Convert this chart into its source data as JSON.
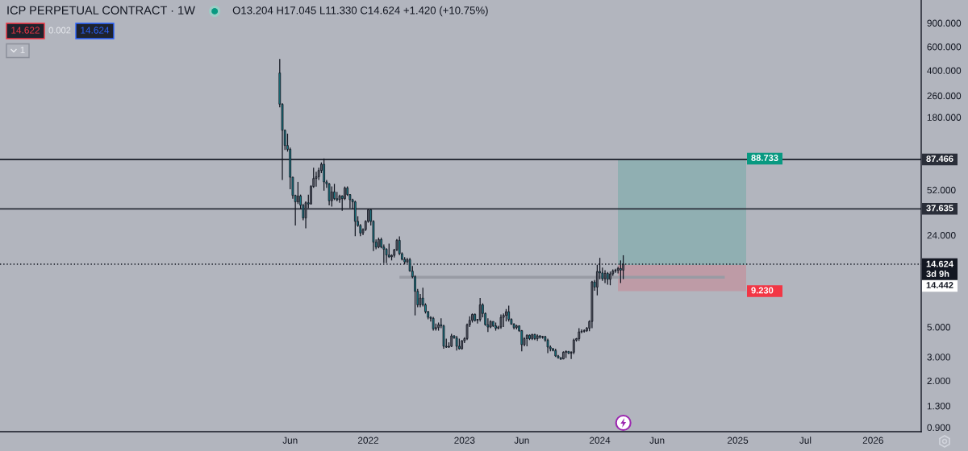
{
  "chart_data": {
    "type": "candlestick",
    "title": "ICP PERPETUAL CONTRACT · 1W",
    "annotations": [
      "O13.204 H17.045 L11.330 C14.624 +1.420 (+10.75%)",
      "14.622",
      "0.002",
      "14.624",
      "1",
      "14.442"
    ],
    "categories": [
      null,
      null,
      null,
      null,
      null,
      null,
      null,
      null,
      null,
      null,
      null,
      null,
      null,
      null,
      null,
      null,
      null,
      null,
      null,
      null,
      null,
      null,
      null,
      null,
      null,
      null,
      null,
      null,
      null,
      null,
      null,
      null,
      null,
      null,
      null,
      null,
      null,
      null,
      null,
      null,
      null,
      null,
      null,
      null,
      null,
      null,
      null,
      null,
      null,
      null,
      null,
      null,
      null,
      null,
      null,
      null,
      null,
      null,
      null,
      null,
      null,
      null,
      null,
      null,
      null,
      null,
      null,
      null,
      null,
      null,
      null,
      null,
      null,
      null,
      null,
      null,
      null,
      null,
      null,
      null,
      null,
      null,
      null,
      null,
      null,
      null,
      null,
      null,
      null,
      null,
      null,
      null,
      null,
      null,
      null,
      null,
      null,
      null,
      null,
      null,
      null,
      null,
      null,
      null,
      null,
      null,
      null,
      null,
      null,
      null,
      null,
      "Jun",
      null,
      null,
      null,
      null,
      null,
      null,
      null,
      null,
      null,
      null,
      null,
      null,
      null,
      null,
      null,
      null,
      null,
      null,
      null,
      null,
      null,
      null,
      null,
      null,
      null,
      null,
      null,
      null,
      null,
      "2022",
      null,
      null,
      null,
      null,
      null,
      null,
      null,
      null,
      null,
      null,
      null,
      null,
      null,
      null,
      null,
      null,
      null,
      null,
      null,
      null,
      null,
      null,
      null,
      null,
      null,
      null,
      null,
      null,
      null,
      null,
      null,
      null,
      null,
      null,
      null,
      null,
      "2023",
      null,
      null,
      null,
      null,
      null,
      null,
      null,
      null,
      null,
      null,
      null,
      null,
      null,
      null,
      null,
      null,
      null,
      null,
      null,
      null,
      null,
      "Jun",
      null,
      null,
      null,
      null,
      null,
      null,
      null,
      null,
      null,
      null,
      null,
      null,
      null,
      null,
      null,
      null,
      null,
      null,
      null,
      null,
      null,
      null,
      null,
      null,
      null,
      null,
      null,
      null,
      null,
      "2024",
      null,
      null,
      null,
      null,
      null,
      null,
      null,
      null,
      null,
      null,
      null,
      null,
      null,
      null,
      null,
      null,
      null,
      null,
      null,
      null,
      null,
      "Jun",
      null,
      null,
      null,
      null,
      null,
      null,
      null,
      null,
      null,
      null,
      null,
      null,
      null,
      null,
      null,
      null,
      null,
      null,
      null,
      null,
      null,
      null,
      null,
      null,
      null,
      null,
      null,
      null,
      null,
      null,
      "2025",
      null,
      null,
      null,
      null,
      null,
      null,
      null,
      null,
      null,
      null,
      null,
      null,
      null,
      null,
      null,
      null,
      null,
      null,
      null,
      null,
      null,
      null,
      null,
      null,
      null,
      "Jul",
      null,
      null,
      null,
      null,
      null,
      null,
      null,
      null,
      null,
      null,
      null,
      null,
      null,
      null,
      null,
      null,
      null,
      null,
      null,
      null,
      null,
      null,
      null,
      null,
      null,
      "2026",
      null,
      null,
      null,
      null,
      null,
      null,
      null,
      null,
      null,
      null,
      null,
      null,
      null,
      null,
      null,
      null,
      null,
      null
    ],
    "ohlc": [
      null,
      null,
      null,
      null,
      null,
      null,
      null,
      null,
      null,
      null,
      null,
      null,
      null,
      null,
      null,
      null,
      null,
      null,
      null,
      null,
      null,
      null,
      null,
      null,
      null,
      null,
      null,
      null,
      null,
      null,
      null,
      null,
      null,
      null,
      null,
      null,
      null,
      null,
      null,
      null,
      null,
      null,
      null,
      null,
      null,
      null,
      null,
      null,
      null,
      null,
      null,
      null,
      null,
      null,
      null,
      null,
      null,
      null,
      null,
      null,
      null,
      null,
      null,
      null,
      null,
      null,
      null,
      null,
      null,
      null,
      null,
      null,
      null,
      null,
      null,
      null,
      null,
      null,
      null,
      null,
      null,
      null,
      null,
      null,
      null,
      null,
      null,
      null,
      null,
      null,
      null,
      null,
      null,
      null,
      null,
      null,
      null,
      null,
      null,
      null,
      null,
      null,
      null,
      null,
      null,
      null,
      null,
      [
        383,
        486,
        213,
        225
      ],
      [
        225,
        228,
        61.7,
        144
      ],
      [
        144,
        146,
        103,
        111
      ],
      [
        111,
        136,
        100,
        104
      ],
      [
        104,
        107,
        52.6,
        64.6
      ],
      [
        64.6,
        65.2,
        44.8,
        47.3
      ],
      [
        47.3,
        48,
        28.3,
        42.4
      ],
      [
        42.4,
        59.6,
        40.9,
        46.9
      ],
      [
        46.9,
        48,
        37.6,
        40
      ],
      [
        40,
        40.9,
        31,
        32.2
      ],
      [
        32.2,
        42.8,
        27,
        41.8
      ],
      [
        41.8,
        48,
        38.1,
        40.9
      ],
      [
        40.9,
        56.4,
        40.5,
        55.1
      ],
      [
        55.1,
        75.9,
        53.8,
        63.2
      ],
      [
        63.2,
        70.9,
        55,
        65.2
      ],
      [
        65.2,
        75.9,
        61.7,
        72.5
      ],
      [
        72.5,
        83.2,
        69.3,
        80.6
      ],
      [
        80.6,
        89.1,
        51.4,
        59.6
      ],
      [
        59.6,
        61.7,
        53.8,
        57.7
      ],
      [
        57.7,
        58.5,
        40,
        43.2
      ],
      [
        43.2,
        55.1,
        39.1,
        50.3
      ],
      [
        50.3,
        57.7,
        43.7,
        44.8
      ],
      [
        44.8,
        50.3,
        42.8,
        44
      ],
      [
        44,
        48,
        41.8,
        46.9
      ],
      [
        46.9,
        47.5,
        36.4,
        44.8
      ],
      [
        44.8,
        55.1,
        43.7,
        53.8
      ],
      [
        53.8,
        55.1,
        46.9,
        48
      ],
      [
        48,
        48.5,
        38.1,
        44
      ],
      [
        44,
        44.8,
        37.6,
        42.4
      ],
      [
        42.4,
        43.2,
        23.6,
        30.4
      ],
      [
        30.4,
        33.2,
        27.7,
        28.3
      ],
      [
        28.3,
        29,
        23.6,
        24.9
      ],
      [
        24.9,
        27,
        24,
        26.4
      ],
      [
        26.4,
        31,
        25.8,
        30.4
      ],
      [
        30.4,
        37.6,
        29.7,
        37
      ],
      [
        37,
        37.6,
        28.3,
        30.4
      ],
      [
        30.4,
        31,
        18.3,
        21.3
      ],
      [
        21.3,
        22.3,
        18.9,
        19.6
      ],
      [
        19.6,
        23,
        19.2,
        22.3
      ],
      [
        22.3,
        23,
        19.2,
        19.6
      ],
      [
        19.6,
        20.5,
        14.9,
        18.9
      ],
      [
        18.9,
        19.2,
        14.9,
        17.1
      ],
      [
        17.1,
        20.8,
        16.3,
        16.6
      ],
      [
        16.6,
        17.3,
        15.6,
        17
      ],
      [
        17,
        19,
        16.4,
        18.7
      ],
      [
        18.7,
        22.5,
        18.3,
        22
      ],
      [
        22,
        23.5,
        17.1,
        17.5
      ],
      [
        17.5,
        17.9,
        15.6,
        15.9
      ],
      [
        15.9,
        16.5,
        14.6,
        15.2
      ],
      [
        15.2,
        16.3,
        14.9,
        15.8
      ],
      [
        15.8,
        16.3,
        12.9,
        13
      ],
      [
        13,
        14.2,
        11.5,
        11.8
      ],
      [
        11.8,
        12.1,
        6.1,
        9.2
      ],
      [
        9.2,
        9.6,
        7,
        7.3
      ],
      [
        7.3,
        8.8,
        7,
        8.2
      ],
      [
        8.2,
        9.8,
        7.1,
        7.3
      ],
      [
        7.3,
        7.5,
        6.3,
        6.5
      ],
      [
        6.5,
        6.6,
        5.7,
        5.9
      ],
      [
        5.9,
        6,
        5.5,
        5.8
      ],
      [
        5.8,
        5.95,
        4.7,
        4.85
      ],
      [
        4.85,
        5.3,
        4.7,
        4.95
      ],
      [
        4.95,
        5.4,
        4.7,
        5.2
      ],
      [
        5.2,
        5.8,
        4.9,
        5.1
      ],
      [
        5.1,
        5.2,
        3.45,
        3.6
      ],
      [
        3.6,
        4.1,
        3.5,
        3.55
      ],
      [
        3.55,
        3.85,
        3.5,
        3.6
      ],
      [
        3.6,
        4.45,
        3.55,
        4.3
      ],
      [
        4.3,
        4.35,
        4.1,
        4.15
      ],
      [
        4.15,
        4.3,
        3.35,
        3.6
      ],
      [
        3.6,
        4.1,
        3.4,
        3.45
      ],
      [
        3.45,
        4,
        3.4,
        3.95
      ],
      [
        3.95,
        4.2,
        3.8,
        4.1
      ],
      [
        4.1,
        5.3,
        4,
        5.2
      ],
      [
        5.2,
        6,
        5,
        5.6
      ],
      [
        5.6,
        6.3,
        5.4,
        6.2
      ],
      [
        6.2,
        6.3,
        5.5,
        5.6
      ],
      [
        5.6,
        5.75,
        5.3,
        5.7
      ],
      [
        5.7,
        8.2,
        5.5,
        7.3
      ],
      [
        7.3,
        7.5,
        5.9,
        6.3
      ],
      [
        6.3,
        6.4,
        5.1,
        5.2
      ],
      [
        5.2,
        5.8,
        4.6,
        5
      ],
      [
        5,
        5.6,
        4.9,
        5.5
      ],
      [
        5.5,
        5.5,
        5,
        5.1
      ],
      [
        5.1,
        5.4,
        4.7,
        4.9
      ],
      [
        4.9,
        5.1,
        4.8,
        5
      ],
      [
        5,
        6.2,
        4.85,
        5.9
      ],
      [
        5.9,
        6.3,
        5,
        6.1
      ],
      [
        6.1,
        6.8,
        5.5,
        6.5
      ],
      [
        6.5,
        7.2,
        5.5,
        5.7
      ],
      [
        5.7,
        5.8,
        5.2,
        5.25
      ],
      [
        5.25,
        5.35,
        4.8,
        4.95
      ],
      [
        4.95,
        5.2,
        4.8,
        5.1
      ],
      [
        5.1,
        5.15,
        4.6,
        4.7
      ],
      [
        4.7,
        4.75,
        3.3,
        3.7
      ],
      [
        3.7,
        4.2,
        3.6,
        4.1
      ],
      [
        4.1,
        4.4,
        3.6,
        4.35
      ],
      [
        4.35,
        4.4,
        4,
        4.1
      ],
      [
        4.1,
        4.45,
        4,
        4.4
      ],
      [
        4.4,
        4.45,
        4,
        4.1
      ],
      [
        4.1,
        4.4,
        3.95,
        4.3
      ],
      [
        4.3,
        4.35,
        4.1,
        4.2
      ],
      [
        4.2,
        4.3,
        4.1,
        4.25
      ],
      [
        4.25,
        4.3,
        3.9,
        4
      ],
      [
        4,
        4.1,
        3.2,
        3.55
      ],
      [
        3.55,
        3.65,
        3.3,
        3.45
      ],
      [
        3.45,
        3.5,
        3.3,
        3.35
      ],
      [
        3.35,
        3.45,
        3,
        3.05
      ],
      [
        3.05,
        3.1,
        2.92,
        2.95
      ],
      [
        2.95,
        3,
        2.85,
        2.9
      ],
      [
        2.9,
        3.3,
        2.88,
        3.25
      ],
      [
        3.25,
        3.35,
        2.95,
        3.3
      ],
      [
        3.3,
        3.3,
        3.15,
        3.2
      ],
      [
        3.2,
        3.3,
        2.9,
        3.25
      ],
      [
        3.25,
        4.1,
        3.15,
        4
      ],
      [
        4,
        4.15,
        3.9,
        4.1
      ],
      [
        4.1,
        4.9,
        3.95,
        4.6
      ],
      [
        4.6,
        4.8,
        4.5,
        4.65
      ],
      [
        4.65,
        4.8,
        4.55,
        4.7
      ],
      [
        4.7,
        5,
        4.6,
        4.9
      ],
      [
        4.9,
        5.6,
        4.65,
        5.5
      ],
      [
        5.5,
        11,
        4.9,
        10.8
      ],
      [
        10.8,
        11.2,
        9.3,
        9.9
      ],
      [
        9.9,
        14.5,
        8.6,
        12.9
      ],
      [
        12.9,
        16.3,
        11.3,
        12.6
      ],
      [
        12.6,
        13.8,
        11,
        11.4
      ],
      [
        11.4,
        13.2,
        10.6,
        12.5
      ],
      [
        12.5,
        12.8,
        10.3,
        11.3
      ],
      [
        11.3,
        12.9,
        10.2,
        12.4
      ],
      [
        12.4,
        13.4,
        12,
        13
      ],
      [
        13,
        13.5,
        12.6,
        13.2
      ],
      [
        13.2,
        14,
        12.5,
        13.6
      ],
      [
        13.6,
        15.6,
        10.6,
        13.204
      ],
      [
        13.204,
        17.045,
        11.33,
        14.624
      ],
      null,
      null,
      null,
      null,
      null,
      null,
      null,
      null,
      null,
      null,
      null,
      null,
      null,
      null,
      null,
      null,
      null,
      null,
      null,
      null,
      null,
      null,
      null,
      null,
      null,
      null,
      null,
      null,
      null,
      null,
      null,
      null,
      null,
      null,
      null,
      null,
      null,
      null,
      null,
      null,
      null,
      null,
      null,
      null,
      null,
      null,
      null,
      null,
      null,
      null,
      null,
      null,
      null,
      null,
      null,
      null,
      null,
      null,
      null,
      null,
      null,
      null,
      null,
      null,
      null,
      null,
      null,
      null,
      null,
      null,
      null,
      null,
      null,
      null,
      null,
      null,
      null,
      null,
      null,
      null,
      null,
      null,
      null,
      null,
      null,
      null,
      null,
      null,
      null,
      null,
      null,
      null,
      null,
      null,
      null,
      null,
      null,
      null,
      null,
      null,
      null,
      null,
      null,
      null,
      null,
      null,
      null,
      null,
      null,
      null,
      null,
      null,
      null,
      null
    ],
    "colors": [
      null,
      null,
      null,
      null,
      null,
      null,
      null,
      null,
      null,
      null,
      null,
      null,
      null,
      null,
      null,
      null,
      null,
      null,
      null,
      null,
      null,
      null,
      null,
      null,
      null,
      null,
      null,
      null,
      null,
      null,
      null,
      null,
      null,
      null,
      null,
      null,
      null,
      null,
      null,
      null,
      null,
      null,
      null,
      null,
      null,
      null,
      null,
      null,
      null,
      null,
      null,
      null,
      null,
      null,
      null,
      null,
      null,
      null,
      null,
      null,
      null,
      null,
      null,
      null,
      null,
      null,
      null,
      null,
      null,
      null,
      null,
      null,
      null,
      null,
      null,
      null,
      null,
      null,
      null,
      null,
      null,
      null,
      null,
      null,
      null,
      null,
      null,
      null,
      null,
      null,
      null,
      null,
      null,
      null,
      null,
      null,
      null,
      null,
      null,
      null,
      null,
      null,
      null,
      null,
      null,
      null,
      null,
      "#18838f",
      "#18838f",
      "#18838f",
      "#18838f",
      "#18838f",
      "#18838f",
      "#18838f",
      "#5d606b",
      "#18838f",
      "#18838f",
      "#5d606b",
      "#18838f",
      "#5d606b",
      "#5d606b",
      "#5d606b",
      "#5d606b",
      "#5d606b",
      "#18838f",
      "#18838f",
      "#18838f",
      "#5d606b",
      "#18838f",
      "#18838f",
      "#5d606b",
      "#18838f",
      "#5d606b",
      "#18838f",
      "#18838f",
      "#18838f",
      "#18838f",
      "#18838f",
      "#18838f",
      "#5d606b",
      "#5d606b",
      "#5d606b",
      "#18838f",
      "#18838f",
      "#18838f",
      "#5d606b",
      "#18838f",
      "#18838f",
      "#18838f",
      "#18838f",
      "#5d606b",
      "#5d606b",
      "#5d606b",
      "#18838f",
      "#18838f",
      "#18838f",
      "#5d606b",
      "#18838f",
      "#18838f",
      "#18838f",
      "#18838f",
      "#5d606b",
      "#18838f",
      "#18838f",
      "#18838f",
      "#18838f",
      "#18838f",
      "#5d606b",
      "#5d606b",
      "#18838f",
      "#18838f",
      "#18838f",
      "#5d606b",
      "#5d606b",
      "#18838f",
      "#18838f",
      "#18838f",
      "#5d606b",
      "#5d606b",
      "#5d606b",
      "#5d606b",
      "#5d606b",
      "#18838f",
      "#5d606b",
      "#5d606b",
      "#18838f",
      "#18838f",
      "#18838f",
      "#5d606b",
      "#18838f",
      "#18838f",
      "#5d606b",
      "#5d606b",
      "#5d606b",
      "#5d606b",
      "#18838f",
      "#18838f",
      "#18838f",
      "#5d606b",
      "#18838f",
      "#18838f",
      "#5d606b",
      "#5d606b",
      "#18838f",
      "#5d606b",
      "#18838f",
      "#5d606b",
      "#18838f",
      "#5d606b",
      "#18838f",
      "#18838f",
      "#18838f",
      "#18838f",
      "#18838f",
      "#18838f",
      "#18838f",
      "#5d606b",
      "#5d606b",
      "#18838f",
      "#5d606b",
      "#5d606b",
      "#5d606b",
      "#5d606b",
      "#5d606b",
      "#5d606b",
      "#5d606b",
      "#5d606b",
      "#5d606b",
      "#18838f",
      "#5d606b",
      "#18838f",
      "#18838f",
      "#5d606b",
      "#18838f",
      "#5d606b",
      "#5d606b",
      "#5d606b",
      "#5d606b",
      "#18838f",
      "#5d606b",
      null,
      null,
      null,
      null,
      null,
      null,
      null,
      null,
      null,
      null,
      null,
      null,
      null,
      null,
      null,
      null,
      null,
      null,
      null,
      null,
      null,
      null,
      null,
      null,
      null,
      null,
      null,
      null,
      null,
      null,
      null,
      null,
      null,
      null,
      null,
      null,
      null,
      null,
      null,
      null,
      null,
      null,
      null,
      null,
      null,
      null,
      null,
      null,
      null,
      null,
      null,
      null,
      null,
      null,
      null,
      null,
      null,
      null,
      null,
      null,
      null,
      null,
      null,
      null,
      null,
      null,
      null,
      null,
      null,
      null,
      null,
      null,
      null,
      null,
      null,
      null,
      null,
      null,
      null,
      null,
      null,
      null,
      null,
      null,
      null,
      null,
      null,
      null,
      null,
      null,
      null,
      null,
      null,
      null,
      null,
      null,
      null,
      null,
      null,
      null,
      null,
      null,
      null,
      null,
      null,
      null,
      null,
      null,
      null,
      null,
      null,
      null,
      null,
      null
    ],
    "series": [
      {
        "type": "line",
        "color": "#989ba4",
        "values": [
          null,
          null,
          null,
          null,
          null,
          null,
          null,
          null,
          null,
          null,
          null,
          null,
          null,
          null,
          null,
          null,
          null,
          null,
          null,
          null,
          null,
          null,
          null,
          null,
          null,
          null,
          null,
          null,
          null,
          null,
          null,
          null,
          null,
          null,
          null,
          null,
          null,
          null,
          null,
          null,
          null,
          null,
          null,
          null,
          null,
          null,
          null,
          null,
          null,
          null,
          null,
          null,
          null,
          null,
          null,
          null,
          null,
          null,
          null,
          null,
          null,
          null,
          null,
          null,
          null,
          null,
          null,
          null,
          null,
          null,
          null,
          null,
          null,
          null,
          null,
          null,
          null,
          null,
          null,
          null,
          null,
          null,
          null,
          null,
          null,
          null,
          null,
          null,
          null,
          null,
          null,
          null,
          null,
          null,
          null,
          null,
          null,
          null,
          null,
          null,
          null,
          null,
          null,
          null,
          null,
          null,
          null,
          null,
          null,
          null,
          null,
          null,
          null,
          null,
          null,
          null,
          null,
          null,
          null,
          null,
          null,
          null,
          null,
          null,
          null,
          null,
          null,
          null,
          null,
          null,
          null,
          null,
          null,
          null,
          null,
          null,
          null,
          null,
          null,
          null,
          null,
          null,
          null,
          null,
          null,
          null,
          null,
          null,
          null,
          null,
          null,
          null,
          null,
          11.7,
          11.7,
          11.7,
          11.7,
          11.7,
          11.7,
          11.7,
          11.7,
          11.7,
          11.7,
          11.7,
          11.7,
          11.7,
          11.7,
          11.7,
          11.7,
          11.7,
          11.7,
          11.7,
          11.7,
          11.7,
          11.7,
          11.7,
          11.7,
          11.7,
          11.7,
          11.7,
          11.7,
          11.7,
          11.7,
          11.7,
          11.7,
          11.7,
          11.7,
          11.7,
          11.7,
          11.7,
          11.7,
          11.7,
          11.7,
          11.7,
          11.7,
          11.7,
          11.7,
          11.7,
          11.7,
          11.7,
          11.7,
          11.7,
          11.7,
          11.7,
          11.7,
          11.7,
          11.7,
          11.7,
          11.7,
          11.7,
          11.7,
          11.7,
          11.7,
          11.7,
          11.7,
          11.7,
          11.7,
          11.7,
          11.7,
          11.7,
          11.7,
          11.7,
          11.7,
          11.7,
          11.7,
          11.7,
          11.7,
          11.7,
          11.7,
          11.7,
          11.7,
          11.7,
          11.7,
          11.7,
          11.7,
          11.7,
          11.7,
          11.7,
          11.7,
          11.7,
          11.7,
          11.7,
          11.7,
          11.7,
          11.7,
          11.7,
          11.7,
          11.7,
          11.7,
          11.7,
          11.7,
          11.7,
          11.7,
          11.7,
          11.7,
          11.7,
          11.7,
          11.7,
          11.7,
          11.7,
          11.7,
          11.7,
          11.7,
          11.7,
          11.7,
          11.7,
          11.7,
          11.7,
          11.7,
          11.7,
          11.7,
          11.7,
          11.7,
          11.7,
          11.7,
          11.7,
          11.7,
          11.7,
          11.7,
          null,
          null,
          null,
          null,
          null,
          null,
          null,
          null,
          null,
          null,
          null,
          null,
          null,
          null,
          null,
          null,
          null,
          null,
          null,
          null,
          null,
          null,
          null,
          null,
          null,
          null,
          null,
          null,
          null,
          null,
          null,
          null,
          null,
          null,
          null,
          null,
          null,
          null,
          null,
          null,
          null,
          null,
          null,
          null,
          null,
          null,
          null,
          null,
          null,
          null,
          null,
          null,
          null,
          null,
          null,
          null,
          null,
          null,
          null,
          null,
          null,
          null,
          null,
          null,
          null,
          null,
          null,
          null,
          null,
          null,
          null,
          null,
          null,
          null,
          null
        ]
      }
    ],
    "bands": [
      {
        "axis": "y",
        "from": 14.442,
        "to": 88.733,
        "label": "88.733",
        "color": "#089981"
      },
      {
        "axis": "y",
        "from": 14.442,
        "to": 9.23,
        "label": "9.230",
        "color": "#f23645"
      }
    ],
    "ref_lines": [
      {
        "axis": "y",
        "value": 87.466,
        "label": "87.466",
        "color": "#2a2e39"
      },
      {
        "axis": "y",
        "value": 37.635,
        "label": "37.635",
        "color": "#2a2e39"
      },
      {
        "axis": "y",
        "value": 14.624,
        "label": "14.624\n3d 9h",
        "color": "#131722",
        "line_style": "dotted"
      }
    ],
    "ylim": [
      0.837,
      1333
    ],
    "yticks": [
      {
        "value": 0.9,
        "label": "0.900"
      },
      {
        "value": 1.3,
        "label": "1.300"
      },
      {
        "value": 2,
        "label": "2.000"
      },
      {
        "value": 3,
        "label": "3.000"
      },
      {
        "value": 5,
        "label": "5.000"
      },
      {
        "value": 24,
        "label": "24.000"
      },
      {
        "value": 52,
        "label": "52.000"
      },
      {
        "value": 180,
        "label": "180.000"
      },
      {
        "value": 260,
        "label": "260.000"
      },
      {
        "value": 400,
        "label": "400.000"
      },
      {
        "value": 600,
        "label": "600.000"
      },
      {
        "value": 900,
        "label": "900.000"
      }
    ],
    "log": true,
    "grid": false
  }
}
